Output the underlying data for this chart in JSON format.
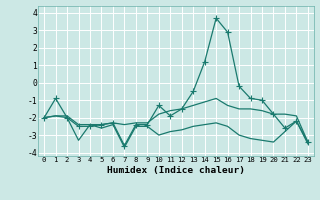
{
  "line1_x": [
    0,
    1,
    2,
    3,
    4,
    5,
    6,
    7,
    8,
    9,
    10,
    11,
    12,
    13,
    14,
    15,
    16,
    17,
    18,
    19,
    20,
    21,
    22,
    23
  ],
  "line1_y": [
    -2.0,
    -0.9,
    -2.0,
    -2.5,
    -2.5,
    -2.4,
    -2.3,
    -3.6,
    -2.4,
    -2.4,
    -1.3,
    -1.9,
    -1.5,
    -0.5,
    1.2,
    3.7,
    2.9,
    -0.2,
    -0.9,
    -1.0,
    -1.8,
    -2.6,
    -2.2,
    -3.4
  ],
  "line2_x": [
    0,
    1,
    2,
    3,
    4,
    5,
    6,
    7,
    8,
    9,
    10,
    11,
    12,
    13,
    14,
    15,
    16,
    17,
    18,
    19,
    20,
    21,
    22,
    23
  ],
  "line2_y": [
    -2.0,
    -1.9,
    -1.9,
    -2.4,
    -2.4,
    -2.4,
    -2.3,
    -2.4,
    -2.3,
    -2.3,
    -1.8,
    -1.6,
    -1.5,
    -1.3,
    -1.1,
    -0.9,
    -1.3,
    -1.5,
    -1.5,
    -1.6,
    -1.8,
    -1.8,
    -1.9,
    -3.4
  ],
  "line3_x": [
    0,
    1,
    2,
    3,
    4,
    5,
    6,
    7,
    8,
    9,
    10,
    11,
    12,
    13,
    14,
    15,
    16,
    17,
    18,
    19,
    20,
    21,
    22,
    23
  ],
  "line3_y": [
    -2.0,
    -1.9,
    -2.0,
    -3.3,
    -2.4,
    -2.6,
    -2.4,
    -3.7,
    -2.5,
    -2.5,
    -3.0,
    -2.8,
    -2.7,
    -2.5,
    -2.4,
    -2.3,
    -2.5,
    -3.0,
    -3.2,
    -3.3,
    -3.4,
    -2.8,
    -2.2,
    -3.5
  ],
  "color": "#1a7a6e",
  "bg_color": "#cce8e5",
  "grid_color": "#ffffff",
  "xlabel": "Humidex (Indice chaleur)",
  "xlim": [
    -0.5,
    23.5
  ],
  "ylim": [
    -4.2,
    4.4
  ],
  "yticks": [
    -4,
    -3,
    -2,
    -1,
    0,
    1,
    2,
    3,
    4
  ],
  "xticks": [
    0,
    1,
    2,
    3,
    4,
    5,
    6,
    7,
    8,
    9,
    10,
    11,
    12,
    13,
    14,
    15,
    16,
    17,
    18,
    19,
    20,
    21,
    22,
    23
  ]
}
